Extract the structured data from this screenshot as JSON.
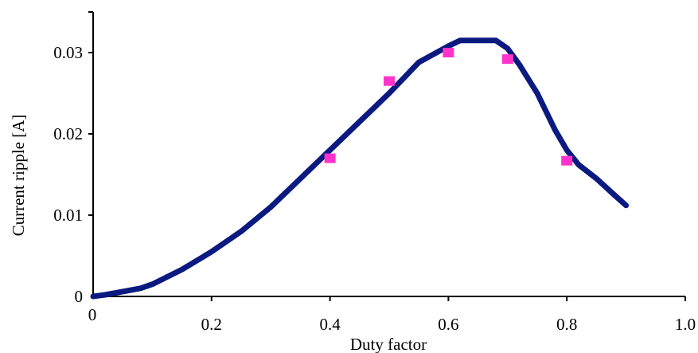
{
  "chart_data": {
    "type": "line",
    "title": "",
    "xlabel": "Duty factor",
    "ylabel": "Current ripple [A]",
    "xlim": [
      0,
      1.0
    ],
    "ylim": [
      0,
      0.035
    ],
    "grid": false,
    "x_ticks": [
      {
        "value": 0,
        "label": "0"
      },
      {
        "value": 0.2,
        "label": "0.2"
      },
      {
        "value": 0.4,
        "label": "0.4"
      },
      {
        "value": 0.6,
        "label": "0.6"
      },
      {
        "value": 0.8,
        "label": "0.8"
      },
      {
        "value": 1.0,
        "label": "1.0"
      }
    ],
    "y_ticks": [
      {
        "value": 0,
        "label": "0"
      },
      {
        "value": 0.01,
        "label": "0.01"
      },
      {
        "value": 0.02,
        "label": "0.02"
      },
      {
        "value": 0.03,
        "label": "0.03"
      }
    ],
    "series": [
      {
        "kind": "line",
        "color": "#0b1a80",
        "x": [
          0,
          0.02,
          0.05,
          0.08,
          0.1,
          0.15,
          0.2,
          0.25,
          0.3,
          0.35,
          0.4,
          0.45,
          0.5,
          0.55,
          0.6,
          0.62,
          0.65,
          0.68,
          0.7,
          0.72,
          0.75,
          0.78,
          0.8,
          0.82,
          0.85,
          0.88,
          0.9
        ],
        "y": [
          0,
          0.0002,
          0.0006,
          0.001,
          0.0015,
          0.0033,
          0.0055,
          0.008,
          0.011,
          0.0145,
          0.018,
          0.0215,
          0.025,
          0.0288,
          0.0308,
          0.0315,
          0.0315,
          0.0315,
          0.0305,
          0.0285,
          0.025,
          0.0205,
          0.018,
          0.0162,
          0.0145,
          0.0125,
          0.0112
        ]
      },
      {
        "kind": "scatter",
        "color": "#ff33cc",
        "x": [
          0.4,
          0.5,
          0.6,
          0.7,
          0.8
        ],
        "y": [
          0.017,
          0.0265,
          0.03,
          0.0292,
          0.0167
        ]
      }
    ]
  }
}
